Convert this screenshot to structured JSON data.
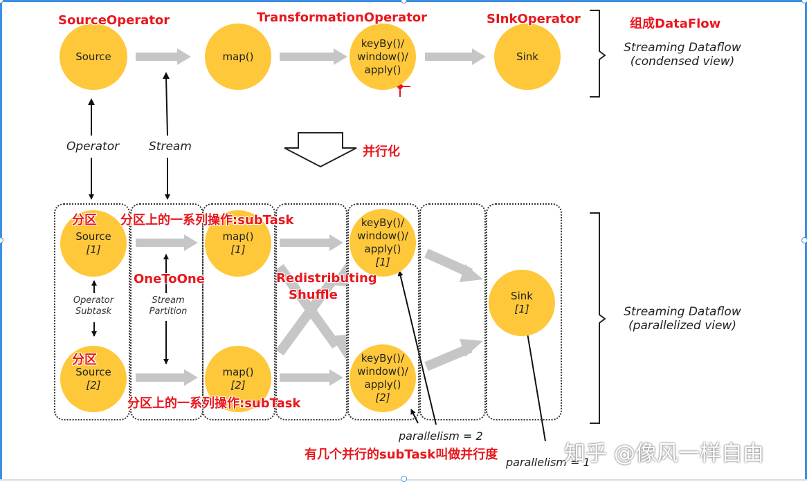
{
  "condensed": {
    "nodes": {
      "source": "Source",
      "map": "map()",
      "transform": [
        "keyBy()/",
        "window()/",
        "apply()"
      ],
      "sink": "Sink"
    },
    "red_labels": {
      "source_operator": "SourceOperator",
      "transformation_operator": "TransformationOperator",
      "sink_operator": "SInkOperator",
      "compose_dataflow": "组成DataFlow"
    },
    "caption": [
      "Streaming Dataflow",
      "(condensed view)"
    ]
  },
  "legend": {
    "operator": "Operator",
    "stream": "Stream",
    "parallelize": "并行化"
  },
  "parallel": {
    "source_1": [
      "Source",
      "[1]"
    ],
    "source_2": [
      "Source",
      "[2]"
    ],
    "map_1": [
      "map()",
      "[1]"
    ],
    "map_2": [
      "map()",
      "[2]"
    ],
    "transform_1": [
      "keyBy()/",
      "window()/",
      "apply()",
      "[1]"
    ],
    "transform_2": [
      "keyBy()/",
      "window()/",
      "apply()",
      "[2]"
    ],
    "sink_1": [
      "Sink",
      "[1]"
    ],
    "operator_subtask": [
      "Operator",
      "Subtask"
    ],
    "stream_partition": [
      "Stream",
      "Partition"
    ],
    "red_labels": {
      "partition_a": "分区",
      "partition_b": "分区",
      "subtask_a": "分区上的一系列操作:subTask",
      "subtask_b": "分区上的一系列操作:subTask",
      "one_to_one": "OneToOne",
      "redistributing": "Redistributing",
      "shuffle": "Shuffle",
      "parallelism_note": "有几个并行的subTask叫做并行度"
    },
    "parallelism_2": "parallelism = 2",
    "parallelism_1": "parallelism = 1",
    "caption": [
      "Streaming Dataflow",
      "(parallelized view)"
    ]
  },
  "watermark": "知乎 @像风一样自由",
  "colors": {
    "node_fill": "#ffc83a",
    "arrow_gray": "#c6c6c6",
    "annotation_red": "#e8171d",
    "frame_blue": "#3c8ee0"
  }
}
